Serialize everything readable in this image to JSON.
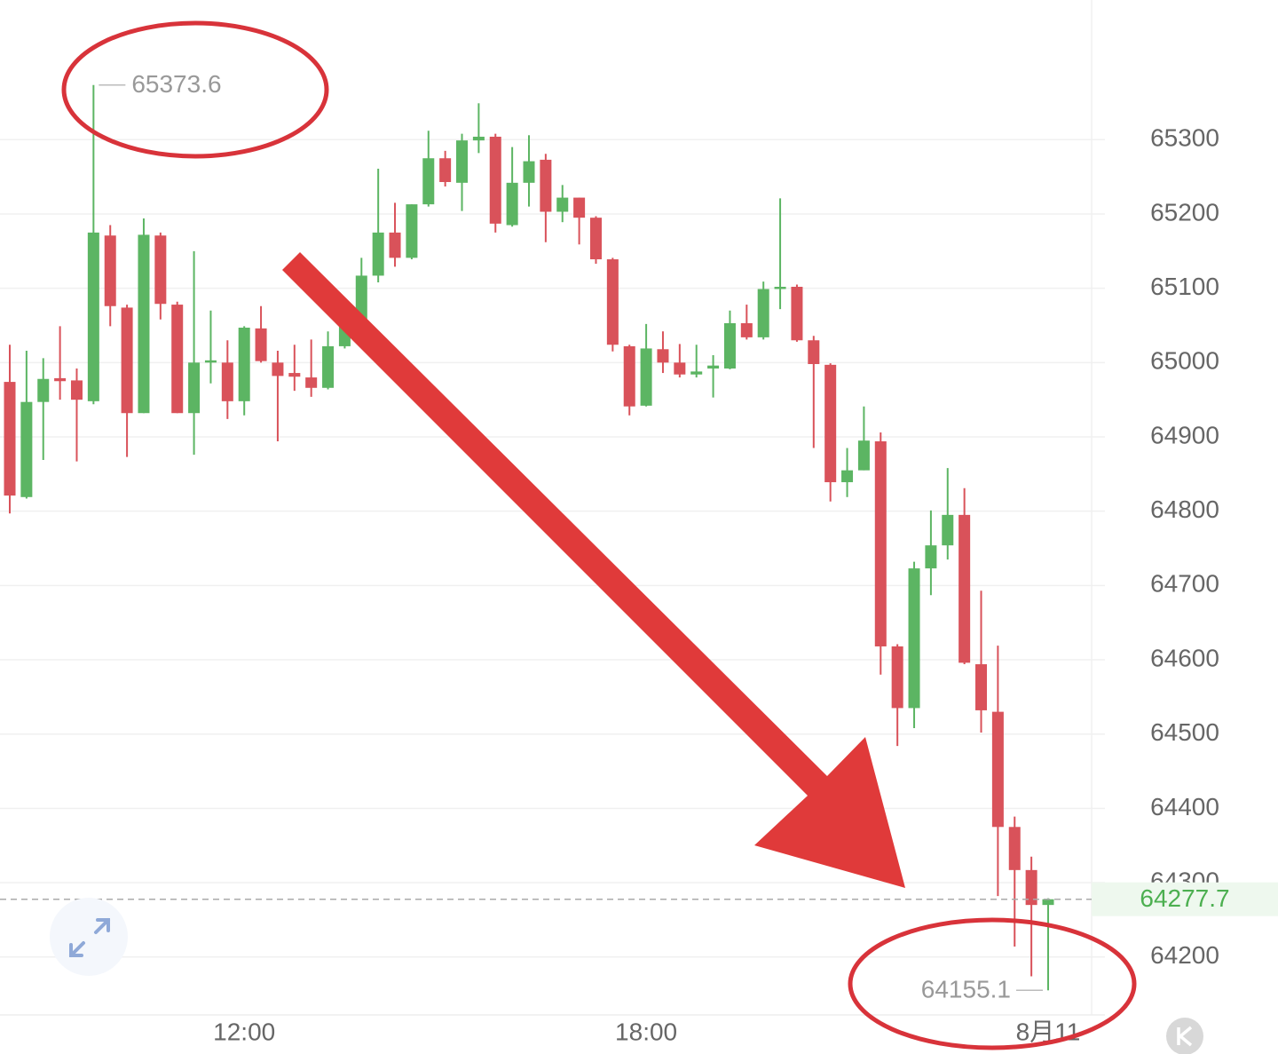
{
  "chart_data": {
    "type": "candlestick",
    "categories": [
      null,
      null,
      null,
      null,
      null,
      null,
      null,
      null,
      null,
      null,
      null,
      null,
      null,
      null,
      "12:00",
      null,
      null,
      null,
      null,
      null,
      null,
      null,
      null,
      null,
      null,
      null,
      null,
      null,
      null,
      null,
      null,
      null,
      null,
      null,
      null,
      null,
      null,
      null,
      "18:00",
      null,
      null,
      null,
      null,
      null,
      null,
      null,
      null,
      null,
      null,
      null,
      null,
      null,
      null,
      null,
      null,
      null,
      null,
      null,
      null,
      null,
      null,
      null,
      "8月11"
    ],
    "open": [
      64974,
      64819,
      64947,
      64979,
      64976,
      64948,
      65171,
      65074,
      64932,
      65171,
      65078,
      64932,
      65000,
      65000,
      64948,
      65046,
      65000,
      64986,
      64980,
      64966,
      65022,
      65058,
      65117,
      65175,
      65141,
      65213,
      65275,
      65242,
      65299,
      65304,
      65185,
      65242,
      65273,
      65203,
      65222,
      65195,
      65139,
      65022,
      64942,
      65018,
      65000,
      64984,
      64992,
      64992,
      65053,
      65034,
      65099,
      65102,
      65030,
      64997,
      64839,
      64855,
      64894,
      64618,
      64535,
      64723,
      64754,
      64795,
      64594,
      64530,
      64375,
      64317,
      64270
    ],
    "high": [
      65024,
      65016,
      65006,
      65049,
      64992,
      65373.6,
      65185,
      65078,
      65194,
      65175,
      65082,
      65150,
      65070,
      65030,
      65049,
      65076,
      65016,
      65024,
      65031,
      65042,
      65076,
      65141,
      65261,
      65215,
      65213,
      65312,
      65285,
      65308,
      65349,
      65308,
      65290,
      65306,
      65281,
      65239,
      65222,
      65197,
      65141,
      65024,
      65052,
      65042,
      65025,
      65024,
      65010,
      65070,
      65078,
      65109,
      65221,
      65105,
      65036,
      64999,
      64885,
      64941,
      64906,
      64621,
      64732,
      64801,
      64858,
      64831,
      64693,
      64619,
      64389,
      64335,
      64279
    ],
    "low": [
      64797,
      64817,
      64869,
      64950,
      64867,
      64944,
      65049,
      64873,
      64932,
      65058,
      64932,
      64876,
      64972,
      64924,
      64929,
      65000,
      64894,
      64962,
      64954,
      64964,
      65019,
      65055,
      65108,
      65129,
      65139,
      65210,
      65237,
      65204,
      65282,
      65175,
      65183,
      65210,
      65162,
      65189,
      65159,
      65133,
      65015,
      64929,
      64941,
      64986,
      64980,
      64980,
      64953,
      64991,
      65031,
      65031,
      65072,
      65028,
      64885,
      64813,
      64819,
      64855,
      64580,
      64484,
      64508,
      64687,
      64735,
      64594,
      64502,
      64282,
      64214,
      64174,
      64155.1
    ],
    "close": [
      64821,
      64947,
      64978,
      64975,
      64950,
      65175,
      65076,
      64932,
      65172,
      65079,
      64932,
      65000,
      65003,
      64948,
      65047,
      65002,
      64982,
      64981,
      64966,
      65022,
      65058,
      65117,
      65175,
      65141,
      65213,
      65275,
      65243,
      65299,
      65304,
      65187,
      65242,
      65271,
      65203,
      65222,
      65195,
      65139,
      65024,
      64941,
      65019,
      65000,
      64984,
      64988,
      64996,
      65053,
      65034,
      65099,
      65102,
      65030,
      64998,
      64839,
      64855,
      64895,
      64618,
      64535,
      64723,
      64754,
      64795,
      64596,
      64532,
      64375,
      64317,
      64270,
      64277.7
    ],
    "up_color": "#5cb563",
    "down_color": "#d9525a",
    "ylim": [
      64122,
      65488
    ],
    "yticks": [
      64200,
      64300,
      64400,
      64500,
      64600,
      64700,
      64800,
      64900,
      65000,
      65100,
      65200,
      65300
    ],
    "grid": true
  }
}
